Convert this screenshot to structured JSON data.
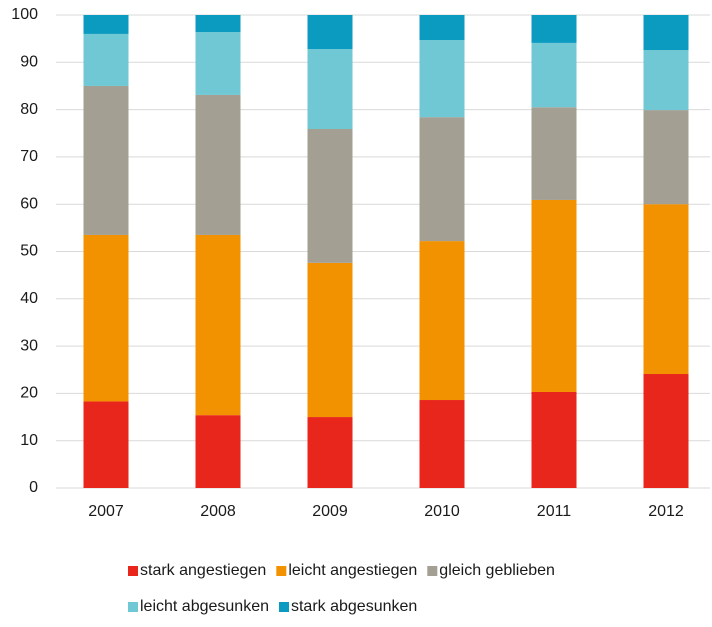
{
  "chart_data": {
    "type": "stacked_bar",
    "categories": [
      "2007",
      "2008",
      "2009",
      "2010",
      "2011",
      "2012"
    ],
    "series": [
      {
        "name": "stark angestiegen",
        "color": "#e8261b",
        "values": [
          18.3,
          15.4,
          15,
          18.6,
          20.3,
          24.1
        ]
      },
      {
        "name": "leicht angestiegen",
        "color": "#f39200",
        "values": [
          35.2,
          38.1,
          32.6,
          33.6,
          40.6,
          35.9
        ]
      },
      {
        "name": "gleich geblieben",
        "color": "#a39f93",
        "values": [
          31.5,
          29.6,
          28.3,
          26.2,
          19.6,
          19.9
        ]
      },
      {
        "name": "leicht abgesunken",
        "color": "#6fc8d3",
        "values": [
          11,
          13.3,
          16.9,
          16.3,
          13.6,
          12.7
        ]
      },
      {
        "name": "stark abgesunken",
        "color": "#0b9ac0",
        "values": [
          4,
          3.6,
          7.2,
          5.3,
          5.9,
          7.4
        ]
      }
    ],
    "ylim": [
      0,
      100
    ],
    "yticks": [
      0,
      10,
      20,
      30,
      40,
      50,
      60,
      70,
      80,
      90,
      100
    ],
    "grid": true,
    "legend": "bottom"
  }
}
